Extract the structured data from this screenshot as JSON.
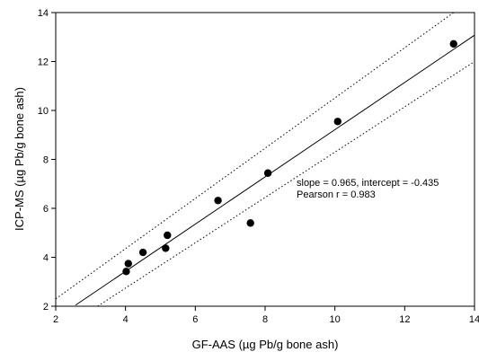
{
  "chart_data": {
    "type": "scatter",
    "title": "",
    "xlabel": "GF-AAS (µg Pb/g bone ash)",
    "ylabel": "ICP-MS (µg Pb/g bone ash)",
    "xlim": [
      2,
      14
    ],
    "ylim": [
      2,
      14
    ],
    "xticks": [
      2,
      4,
      6,
      8,
      10,
      12,
      14
    ],
    "yticks": [
      2,
      4,
      6,
      8,
      10,
      12,
      14
    ],
    "grid": false,
    "points": [
      {
        "x": 4.02,
        "y": 3.42
      },
      {
        "x": 4.08,
        "y": 3.74
      },
      {
        "x": 4.5,
        "y": 4.2
      },
      {
        "x": 5.15,
        "y": 4.37
      },
      {
        "x": 5.2,
        "y": 4.9
      },
      {
        "x": 6.65,
        "y": 6.32
      },
      {
        "x": 7.58,
        "y": 5.4
      },
      {
        "x": 8.08,
        "y": 7.44
      },
      {
        "x": 10.08,
        "y": 9.55
      },
      {
        "x": 13.4,
        "y": 12.72
      }
    ],
    "regression": {
      "slope": 0.965,
      "intercept": -0.435,
      "x_range": [
        2.57,
        14
      ]
    },
    "confidence_band": {
      "upper": {
        "x_range": [
          2,
          13.4
        ],
        "y_range": [
          2.3,
          14
        ]
      },
      "lower": {
        "x_range": [
          3.2,
          14
        ],
        "y_range": [
          2,
          12.0
        ]
      }
    },
    "annotations": [
      "slope = 0.965, intercept = -0.435",
      "Pearson r = 0.983"
    ]
  }
}
